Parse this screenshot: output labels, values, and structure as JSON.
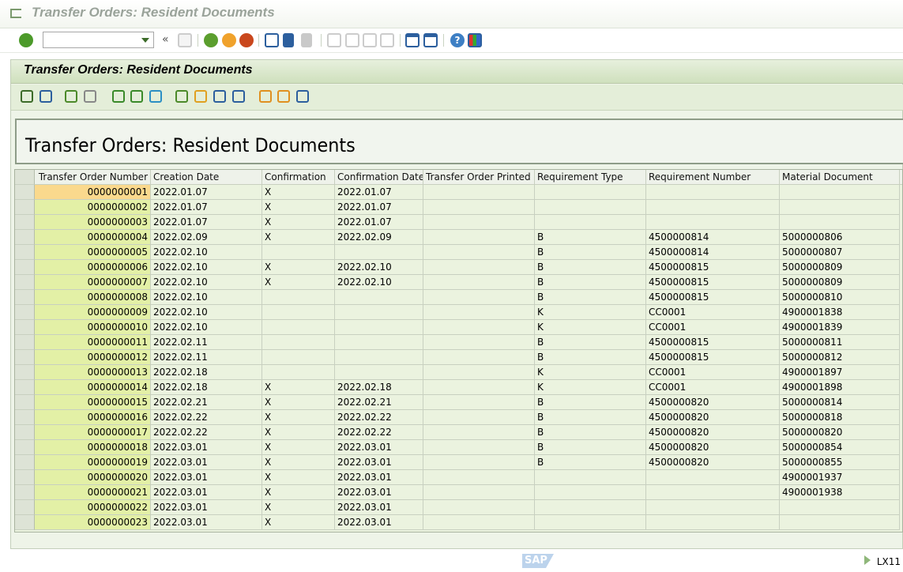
{
  "window": {
    "title": "Transfer Orders: Resident Documents"
  },
  "system_toolbar": {
    "command_field": {
      "value": "",
      "placeholder": ""
    },
    "icons": [
      "enter-icon",
      "back-icon",
      "exit-icon",
      "cancel-icon",
      "print-icon",
      "find-icon",
      "find-next-icon",
      "first-page-icon",
      "previous-page-icon",
      "next-page-icon",
      "last-page-icon",
      "new-session-icon",
      "shortcut-icon",
      "help-icon",
      "customize-layout-icon"
    ]
  },
  "app": {
    "title": "Transfer Orders: Resident Documents",
    "toolbar_icons": [
      "details-icon",
      "refresh-icon",
      "select-all-icon",
      "deselect-all-icon",
      "sort-ascending-icon",
      "sort-descending-icon",
      "filter-icon",
      "export-spreadsheet-icon",
      "word-processing-icon",
      "local-file-icon",
      "abc-analysis-icon",
      "change-layout-icon",
      "select-layout-icon",
      "save-layout-icon"
    ]
  },
  "report": {
    "heading": "Transfer Orders: Resident Documents"
  },
  "table": {
    "columns": [
      "Transfer Order Number",
      "Creation Date",
      "Confirmation",
      "Confirmation Date",
      "Transfer Order Printed",
      "Requirement Type",
      "Requirement Number",
      "Material Document"
    ],
    "rows": [
      [
        "0000000001",
        "2022.01.07",
        "X",
        "2022.01.07",
        "",
        "",
        "",
        ""
      ],
      [
        "0000000002",
        "2022.01.07",
        "X",
        "2022.01.07",
        "",
        "",
        "",
        ""
      ],
      [
        "0000000003",
        "2022.01.07",
        "X",
        "2022.01.07",
        "",
        "",
        "",
        ""
      ],
      [
        "0000000004",
        "2022.02.09",
        "X",
        "2022.02.09",
        "",
        "B",
        "4500000814",
        "5000000806"
      ],
      [
        "0000000005",
        "2022.02.10",
        "",
        "",
        "",
        "B",
        "4500000814",
        "5000000807"
      ],
      [
        "0000000006",
        "2022.02.10",
        "X",
        "2022.02.10",
        "",
        "B",
        "4500000815",
        "5000000809"
      ],
      [
        "0000000007",
        "2022.02.10",
        "X",
        "2022.02.10",
        "",
        "B",
        "4500000815",
        "5000000809"
      ],
      [
        "0000000008",
        "2022.02.10",
        "",
        "",
        "",
        "B",
        "4500000815",
        "5000000810"
      ],
      [
        "0000000009",
        "2022.02.10",
        "",
        "",
        "",
        "K",
        "CC0001",
        "4900001838"
      ],
      [
        "0000000010",
        "2022.02.10",
        "",
        "",
        "",
        "K",
        "CC0001",
        "4900001839"
      ],
      [
        "0000000011",
        "2022.02.11",
        "",
        "",
        "",
        "B",
        "4500000815",
        "5000000811"
      ],
      [
        "0000000012",
        "2022.02.11",
        "",
        "",
        "",
        "B",
        "4500000815",
        "5000000812"
      ],
      [
        "0000000013",
        "2022.02.18",
        "",
        "",
        "",
        "K",
        "CC0001",
        "4900001897"
      ],
      [
        "0000000014",
        "2022.02.18",
        "X",
        "2022.02.18",
        "",
        "K",
        "CC0001",
        "4900001898"
      ],
      [
        "0000000015",
        "2022.02.21",
        "X",
        "2022.02.21",
        "",
        "B",
        "4500000820",
        "5000000814"
      ],
      [
        "0000000016",
        "2022.02.22",
        "X",
        "2022.02.22",
        "",
        "B",
        "4500000820",
        "5000000818"
      ],
      [
        "0000000017",
        "2022.02.22",
        "X",
        "2022.02.22",
        "",
        "B",
        "4500000820",
        "5000000820"
      ],
      [
        "0000000018",
        "2022.03.01",
        "X",
        "2022.03.01",
        "",
        "B",
        "4500000820",
        "5000000854"
      ],
      [
        "0000000019",
        "2022.03.01",
        "X",
        "2022.03.01",
        "",
        "B",
        "4500000820",
        "5000000855"
      ],
      [
        "0000000020",
        "2022.03.01",
        "X",
        "2022.03.01",
        "",
        "",
        "",
        "4900001937"
      ],
      [
        "0000000021",
        "2022.03.01",
        "X",
        "2022.03.01",
        "",
        "",
        "",
        "4900001938"
      ],
      [
        "0000000022",
        "2022.03.01",
        "X",
        "2022.03.01",
        "",
        "",
        "",
        ""
      ],
      [
        "0000000023",
        "2022.03.01",
        "X",
        "2022.03.01",
        "",
        "",
        "",
        ""
      ]
    ]
  },
  "status_bar": {
    "logo": "SAP",
    "transaction": "LX11"
  }
}
